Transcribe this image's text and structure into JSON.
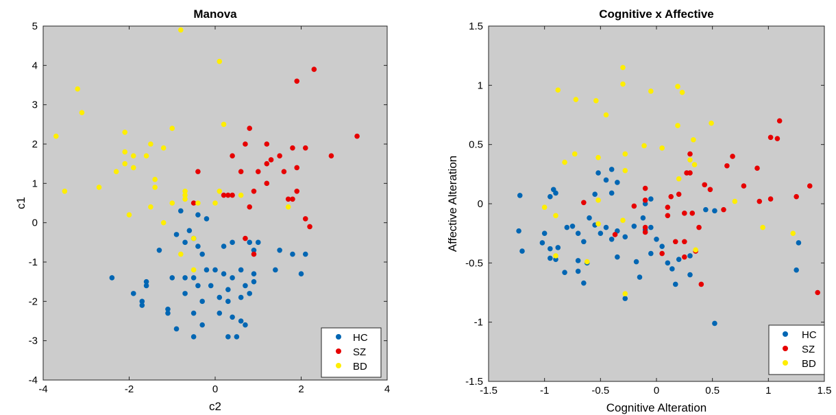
{
  "chart_data": [
    {
      "type": "scatter",
      "title": "Manova",
      "xlabel": "c2",
      "ylabel": "c1",
      "xlim": [
        -4,
        4
      ],
      "ylim": [
        -4,
        5
      ],
      "xticks": [
        "-4",
        "-2",
        "0",
        "2",
        "4"
      ],
      "yticks": [
        "-4",
        "-3",
        "-2",
        "-1",
        "0",
        "1",
        "2",
        "3",
        "4",
        "5"
      ],
      "background": "#cccccc",
      "legend_position": "bottom-right",
      "series": [
        {
          "name": "HC",
          "color": "#0066b3",
          "points": [
            [
              -0.8,
              0.3
            ],
            [
              -0.4,
              0.2
            ],
            [
              -0.2,
              0.1
            ],
            [
              -0.6,
              -0.2
            ],
            [
              -0.9,
              -0.3
            ],
            [
              -0.5,
              -0.4
            ],
            [
              -1.3,
              -0.7
            ],
            [
              -0.7,
              -0.5
            ],
            [
              -0.4,
              -0.6
            ],
            [
              -0.3,
              -0.8
            ],
            [
              0.2,
              -0.6
            ],
            [
              0.4,
              -0.5
            ],
            [
              0.8,
              -0.5
            ],
            [
              1.0,
              -0.5
            ],
            [
              0.9,
              -0.7
            ],
            [
              1.5,
              -0.7
            ],
            [
              1.8,
              -0.8
            ],
            [
              2.1,
              -0.8
            ],
            [
              -2.4,
              -1.4
            ],
            [
              -1.6,
              -1.5
            ],
            [
              -1.0,
              -1.4
            ],
            [
              -0.7,
              -1.4
            ],
            [
              -0.5,
              -1.4
            ],
            [
              -0.2,
              -1.2
            ],
            [
              0.0,
              -1.2
            ],
            [
              0.2,
              -1.3
            ],
            [
              0.4,
              -1.4
            ],
            [
              0.6,
              -1.2
            ],
            [
              0.9,
              -1.3
            ],
            [
              1.4,
              -1.2
            ],
            [
              2.0,
              -1.3
            ],
            [
              -1.9,
              -1.8
            ],
            [
              -1.6,
              -1.6
            ],
            [
              -0.7,
              -1.8
            ],
            [
              -0.4,
              -1.6
            ],
            [
              -0.1,
              -1.6
            ],
            [
              0.3,
              -1.7
            ],
            [
              0.6,
              -1.9
            ],
            [
              0.8,
              -1.8
            ],
            [
              0.9,
              -1.5
            ],
            [
              -1.7,
              -2.0
            ],
            [
              -1.1,
              -2.2
            ],
            [
              -0.3,
              -2.0
            ],
            [
              0.1,
              -1.9
            ],
            [
              0.3,
              -2.0
            ],
            [
              -1.1,
              -2.3
            ],
            [
              -0.9,
              -2.7
            ],
            [
              -0.3,
              -2.6
            ],
            [
              0.4,
              -2.4
            ],
            [
              0.6,
              -2.5
            ],
            [
              0.7,
              -2.6
            ],
            [
              0.3,
              -2.9
            ],
            [
              0.5,
              -2.9
            ],
            [
              -0.5,
              -2.9
            ],
            [
              -1.7,
              -2.1
            ],
            [
              -0.5,
              -2.3
            ],
            [
              0.1,
              -2.3
            ],
            [
              0.7,
              -1.6
            ]
          ]
        },
        {
          "name": "SZ",
          "color": "#e60000",
          "points": [
            [
              2.3,
              3.9
            ],
            [
              1.9,
              3.6
            ],
            [
              3.3,
              2.2
            ],
            [
              0.8,
              2.4
            ],
            [
              1.2,
              2.0
            ],
            [
              0.7,
              2.0
            ],
            [
              1.8,
              1.9
            ],
            [
              2.1,
              1.9
            ],
            [
              2.7,
              1.7
            ],
            [
              1.5,
              1.7
            ],
            [
              0.4,
              1.7
            ],
            [
              1.2,
              1.5
            ],
            [
              1.3,
              1.6
            ],
            [
              1.0,
              1.3
            ],
            [
              1.6,
              1.3
            ],
            [
              1.9,
              1.4
            ],
            [
              0.6,
              1.3
            ],
            [
              -0.4,
              1.3
            ],
            [
              1.2,
              1.0
            ],
            [
              0.9,
              0.8
            ],
            [
              0.3,
              0.7
            ],
            [
              0.4,
              0.7
            ],
            [
              0.2,
              0.7
            ],
            [
              1.9,
              0.8
            ],
            [
              1.8,
              0.6
            ],
            [
              1.7,
              0.6
            ],
            [
              0.8,
              0.4
            ],
            [
              2.1,
              0.1
            ],
            [
              2.2,
              -0.1
            ],
            [
              -0.5,
              0.5
            ],
            [
              0.7,
              -0.4
            ],
            [
              0.9,
              -0.8
            ]
          ]
        },
        {
          "name": "BD",
          "color": "#ffee00",
          "points": [
            [
              -0.8,
              4.9
            ],
            [
              0.1,
              4.1
            ],
            [
              -3.2,
              3.4
            ],
            [
              -3.1,
              2.8
            ],
            [
              -3.7,
              2.2
            ],
            [
              -2.1,
              2.3
            ],
            [
              0.2,
              2.5
            ],
            [
              -1.0,
              2.4
            ],
            [
              -1.5,
              2.0
            ],
            [
              -1.2,
              1.9
            ],
            [
              -2.1,
              1.8
            ],
            [
              -1.9,
              1.7
            ],
            [
              -1.6,
              1.7
            ],
            [
              -2.1,
              1.5
            ],
            [
              -2.3,
              1.3
            ],
            [
              -1.9,
              1.4
            ],
            [
              -1.4,
              1.1
            ],
            [
              -1.4,
              0.9
            ],
            [
              -2.7,
              0.9
            ],
            [
              -3.5,
              0.8
            ],
            [
              -0.7,
              0.8
            ],
            [
              -0.7,
              0.7
            ],
            [
              0.1,
              0.8
            ],
            [
              0.6,
              0.7
            ],
            [
              -0.7,
              0.6
            ],
            [
              -1.0,
              0.5
            ],
            [
              -1.5,
              0.4
            ],
            [
              0.0,
              0.5
            ],
            [
              -0.4,
              0.5
            ],
            [
              1.7,
              0.4
            ],
            [
              -2.0,
              0.2
            ],
            [
              -1.2,
              0.0
            ],
            [
              -0.5,
              -0.4
            ],
            [
              -0.8,
              -0.8
            ],
            [
              -0.5,
              -1.2
            ]
          ]
        }
      ]
    },
    {
      "type": "scatter",
      "title": "Cognitive x Affective",
      "xlabel": "Cognitive Alteration",
      "ylabel": "Affective Alteration",
      "xlim": [
        -1.5,
        1.5
      ],
      "ylim": [
        -1.5,
        1.5
      ],
      "xticks": [
        "-1.5",
        "-1",
        "-0.5",
        "0",
        "0.5",
        "1",
        "1.5"
      ],
      "yticks": [
        "-1.5",
        "-1",
        "-0.5",
        "0",
        "0.5",
        "1",
        "1.5"
      ],
      "background": "#cccccc",
      "legend_position": "bottom-right",
      "series": [
        {
          "name": "HC",
          "color": "#0066b3",
          "points": [
            [
              -1.22,
              0.07
            ],
            [
              -0.92,
              0.12
            ],
            [
              -0.9,
              0.09
            ],
            [
              -0.95,
              0.06
            ],
            [
              -0.4,
              0.29
            ],
            [
              -0.52,
              0.26
            ],
            [
              -0.45,
              0.2
            ],
            [
              -0.4,
              0.09
            ],
            [
              -0.35,
              0.18
            ],
            [
              -0.55,
              0.08
            ],
            [
              -0.1,
              0.0
            ],
            [
              -0.05,
              0.04
            ],
            [
              -1.23,
              -0.23
            ],
            [
              -1.0,
              -0.25
            ],
            [
              -1.02,
              -0.33
            ],
            [
              -0.95,
              -0.38
            ],
            [
              -0.88,
              -0.37
            ],
            [
              -0.8,
              -0.2
            ],
            [
              -0.75,
              -0.19
            ],
            [
              -0.7,
              -0.25
            ],
            [
              -0.6,
              -0.12
            ],
            [
              -0.55,
              -0.18
            ],
            [
              -0.65,
              -0.32
            ],
            [
              -0.5,
              -0.25
            ],
            [
              -0.45,
              -0.2
            ],
            [
              -0.4,
              -0.3
            ],
            [
              -0.35,
              -0.23
            ],
            [
              -0.28,
              -0.28
            ],
            [
              -0.2,
              -0.19
            ],
            [
              -0.12,
              -0.12
            ],
            [
              -0.1,
              -0.22
            ],
            [
              -0.05,
              -0.2
            ],
            [
              0.0,
              -0.3
            ],
            [
              0.05,
              -0.36
            ],
            [
              -0.05,
              -0.42
            ],
            [
              0.1,
              -0.5
            ],
            [
              0.14,
              -0.55
            ],
            [
              0.2,
              -0.47
            ],
            [
              0.3,
              -0.44
            ],
            [
              -1.2,
              -0.4
            ],
            [
              -0.95,
              -0.46
            ],
            [
              -0.9,
              -0.47
            ],
            [
              -0.82,
              -0.58
            ],
            [
              -0.7,
              -0.48
            ],
            [
              -0.7,
              -0.57
            ],
            [
              -0.62,
              -0.5
            ],
            [
              -0.65,
              -0.67
            ],
            [
              -0.35,
              -0.45
            ],
            [
              -0.18,
              -0.49
            ],
            [
              -0.15,
              -0.62
            ],
            [
              0.17,
              -0.68
            ],
            [
              0.3,
              -0.6
            ],
            [
              -0.28,
              -0.8
            ],
            [
              0.44,
              -0.05
            ],
            [
              0.52,
              -0.06
            ],
            [
              1.27,
              -0.33
            ],
            [
              1.25,
              -0.56
            ],
            [
              0.52,
              -1.01
            ]
          ]
        },
        {
          "name": "SZ",
          "color": "#e60000",
          "points": [
            [
              1.1,
              0.7
            ],
            [
              1.02,
              0.56
            ],
            [
              1.08,
              0.55
            ],
            [
              0.68,
              0.4
            ],
            [
              0.63,
              0.32
            ],
            [
              0.3,
              0.42
            ],
            [
              0.27,
              0.26
            ],
            [
              0.3,
              0.26
            ],
            [
              0.9,
              0.3
            ],
            [
              0.43,
              0.16
            ],
            [
              0.78,
              0.15
            ],
            [
              1.37,
              0.15
            ],
            [
              -0.1,
              0.13
            ],
            [
              0.48,
              0.12
            ],
            [
              0.2,
              0.08
            ],
            [
              0.13,
              0.06
            ],
            [
              -0.1,
              0.03
            ],
            [
              1.02,
              0.04
            ],
            [
              0.92,
              0.02
            ],
            [
              1.25,
              0.06
            ],
            [
              -0.65,
              0.01
            ],
            [
              -0.2,
              -0.02
            ],
            [
              0.6,
              -0.05
            ],
            [
              0.25,
              -0.08
            ],
            [
              0.32,
              -0.08
            ],
            [
              0.1,
              -0.1
            ],
            [
              0.1,
              -0.03
            ],
            [
              -0.1,
              -0.2
            ],
            [
              -0.1,
              -0.24
            ],
            [
              0.38,
              -0.2
            ],
            [
              -0.37,
              -0.26
            ],
            [
              0.17,
              -0.32
            ],
            [
              0.25,
              -0.32
            ],
            [
              0.05,
              -0.42
            ],
            [
              0.25,
              -0.45
            ],
            [
              0.35,
              -0.4
            ],
            [
              0.4,
              -0.68
            ],
            [
              1.44,
              -0.75
            ]
          ]
        },
        {
          "name": "BD",
          "color": "#ffee00",
          "points": [
            [
              -0.3,
              1.15
            ],
            [
              -0.88,
              0.96
            ],
            [
              -0.3,
              1.01
            ],
            [
              -0.05,
              0.95
            ],
            [
              0.19,
              0.99
            ],
            [
              0.23,
              0.94
            ],
            [
              -0.72,
              0.88
            ],
            [
              -0.54,
              0.87
            ],
            [
              -0.45,
              0.75
            ],
            [
              0.19,
              0.66
            ],
            [
              0.49,
              0.68
            ],
            [
              0.33,
              0.54
            ],
            [
              -0.73,
              0.42
            ],
            [
              -0.28,
              0.42
            ],
            [
              -0.11,
              0.49
            ],
            [
              0.05,
              0.47
            ],
            [
              -0.82,
              0.35
            ],
            [
              -0.52,
              0.39
            ],
            [
              0.3,
              0.37
            ],
            [
              0.34,
              0.33
            ],
            [
              -0.28,
              0.28
            ],
            [
              0.2,
              0.21
            ],
            [
              0.7,
              0.02
            ],
            [
              -1.0,
              -0.03
            ],
            [
              -0.9,
              -0.1
            ],
            [
              -0.52,
              0.03
            ],
            [
              -0.3,
              -0.14
            ],
            [
              -0.52,
              -0.17
            ],
            [
              0.95,
              -0.2
            ],
            [
              1.22,
              -0.25
            ],
            [
              -0.9,
              -0.44
            ],
            [
              -0.62,
              -0.49
            ],
            [
              0.35,
              -0.39
            ],
            [
              -0.28,
              -0.76
            ]
          ]
        }
      ]
    }
  ]
}
